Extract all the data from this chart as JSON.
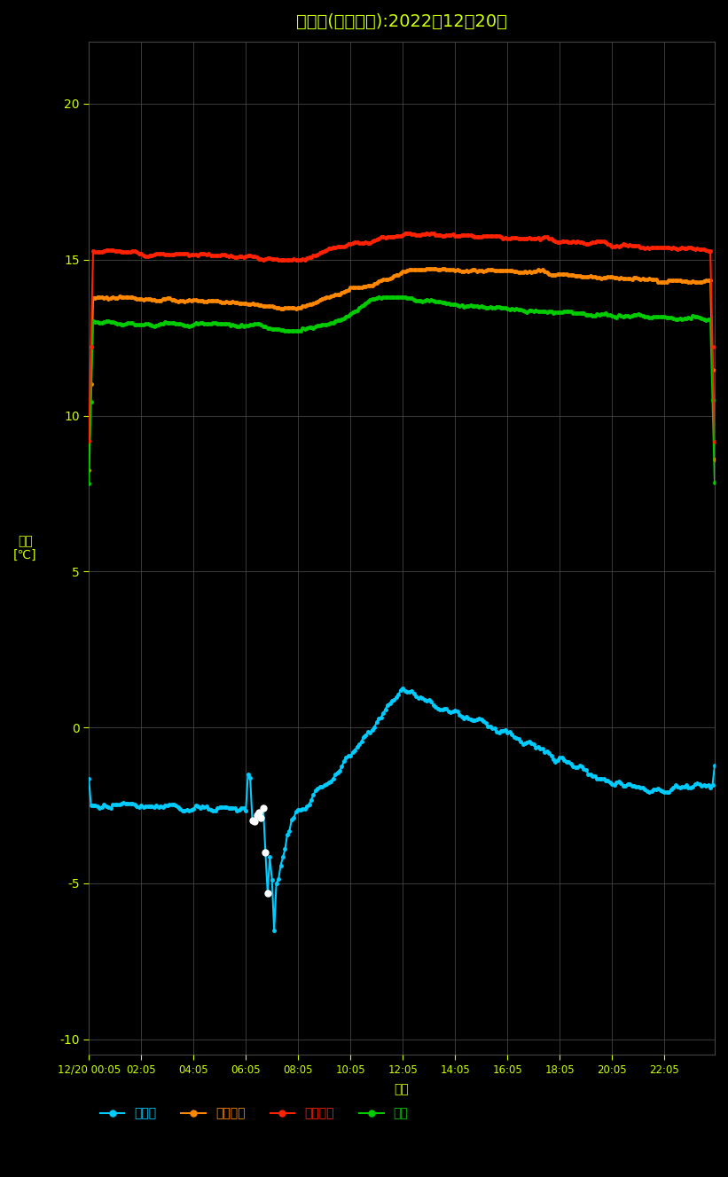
{
  "title": "見学会(湿度管理):2022年12月20日",
  "title_color": "#ccff00",
  "bg_color": "#000000",
  "grid_color": "#444444",
  "ylabel_text": "室温\n[℃]",
  "xlabel_text": "日時",
  "label_color": "#ccff00",
  "tick_color": "#ccff00",
  "ylim": [
    -10.5,
    22
  ],
  "yticks": [
    -10,
    -5,
    0,
    5,
    10,
    15,
    20
  ],
  "xtick_labels": [
    "12/20 00:05",
    "02:05",
    "04:05",
    "06:05",
    "08:05",
    "10:05",
    "12:05",
    "14:05",
    "16:05",
    "18:05",
    "20:05",
    "22:05"
  ],
  "n_points": 288,
  "legend_labels": [
    "外気温",
    "調査場所",
    "リビング",
    "２階"
  ],
  "legend_colors": [
    "#00ccff",
    "#ff8800",
    "#ff2200",
    "#00cc00"
  ],
  "gaiki_color": "#00ccff",
  "chosa_color": "#ff8800",
  "living_color": "#ff2200",
  "nikai_color": "#00cc00"
}
